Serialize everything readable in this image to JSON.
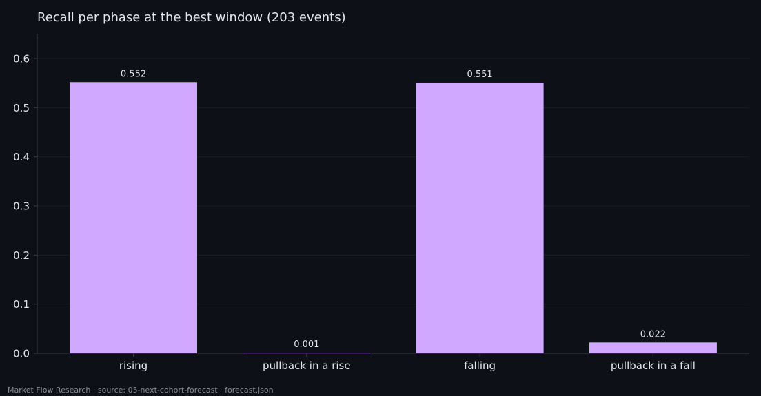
{
  "chart_data": {
    "type": "bar",
    "title": "Recall per phase at the best window (203 events)",
    "xlabel": "",
    "ylabel": "",
    "categories": [
      "rising",
      "pullback in a rise",
      "falling",
      "pullback in a fall"
    ],
    "values": [
      0.552,
      0.001,
      0.551,
      0.022
    ],
    "value_labels": [
      "0.552",
      "0.001",
      "0.551",
      "0.022"
    ],
    "ylim": [
      0,
      0.65
    ],
    "yticks": [
      0.0,
      0.1,
      0.2,
      0.3,
      0.4,
      0.5,
      0.6
    ],
    "ytick_labels": [
      "0.0",
      "0.1",
      "0.2",
      "0.3",
      "0.4",
      "0.5",
      "0.6"
    ],
    "grid": true,
    "legend": "none",
    "colors": {
      "background": "#0d1017",
      "bar": "#d0a8ff",
      "text": "#e6e6ea",
      "grid": "#1a1d25",
      "axis": "#3a3d46"
    }
  },
  "footer": {
    "note": "Market Flow Research · source: 05-next-cohort-forecast · forecast.json"
  }
}
